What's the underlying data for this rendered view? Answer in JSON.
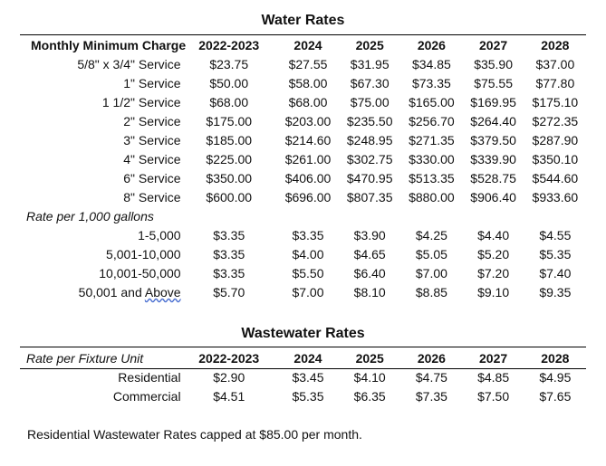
{
  "water": {
    "title": "Water Rates",
    "header": [
      "Monthly Minimum Charge",
      "2022-2023",
      "2024",
      "2025",
      "2026",
      "2027",
      "2028"
    ],
    "service_rows": [
      {
        "label": "5/8\" x 3/4\" Service",
        "values": [
          "$23.75",
          "$27.55",
          "$31.95",
          "$34.85",
          "$35.90",
          "$37.00"
        ]
      },
      {
        "label": "1\" Service",
        "values": [
          "$50.00",
          "$58.00",
          "$67.30",
          "$73.35",
          "$75.55",
          "$77.80"
        ]
      },
      {
        "label": "1 1/2\" Service",
        "values": [
          "$68.00",
          "$68.00",
          "$75.00",
          "$165.00",
          "$169.95",
          "$175.10"
        ]
      },
      {
        "label": "2\" Service",
        "values": [
          "$175.00",
          "$203.00",
          "$235.50",
          "$256.70",
          "$264.40",
          "$272.35"
        ]
      },
      {
        "label": "3\" Service",
        "values": [
          "$185.00",
          "$214.60",
          "$248.95",
          "$271.35",
          "$379.50",
          "$287.90"
        ]
      },
      {
        "label": "4\" Service",
        "values": [
          "$225.00",
          "$261.00",
          "$302.75",
          "$330.00",
          "$339.90",
          "$350.10"
        ]
      },
      {
        "label": "6\" Service",
        "values": [
          "$350.00",
          "$406.00",
          "$470.95",
          "$513.35",
          "$528.75",
          "$544.60"
        ]
      },
      {
        "label": "8\" Service",
        "values": [
          "$600.00",
          "$696.00",
          "$807.35",
          "$880.00",
          "$906.40",
          "$933.60"
        ]
      }
    ],
    "subheader": "Rate per 1,000 gallons",
    "usage_rows": [
      {
        "label": "1-5,000",
        "values": [
          "$3.35",
          "$3.35",
          "$3.90",
          "$4.25",
          "$4.40",
          "$4.55"
        ]
      },
      {
        "label": "5,001-10,000",
        "values": [
          "$3.35",
          "$4.00",
          "$4.65",
          "$5.05",
          "$5.20",
          "$5.35"
        ]
      },
      {
        "label": "10,001-50,000",
        "values": [
          "$3.35",
          "$5.50",
          "$6.40",
          "$7.00",
          "$7.20",
          "$7.40"
        ]
      },
      {
        "label_main": "50,001 and ",
        "label_ul": "Above",
        "values": [
          "$5.70",
          "$7.00",
          "$8.10",
          "$8.85",
          "$9.10",
          "$9.35"
        ]
      }
    ]
  },
  "wastewater": {
    "title": "Wastewater Rates",
    "header": [
      "Rate per Fixture Unit",
      "2022-2023",
      "2024",
      "2025",
      "2026",
      "2027",
      "2028"
    ],
    "rows": [
      {
        "label": "Residential",
        "values": [
          "$2.90",
          "$3.45",
          "$4.10",
          "$4.75",
          "$4.85",
          "$4.95"
        ]
      },
      {
        "label": "Commercial",
        "values": [
          "$4.51",
          "$5.35",
          "$6.35",
          "$7.35",
          "$7.50",
          "$7.65"
        ]
      }
    ]
  },
  "note": "Residential Wastewater Rates capped at $85.00 per month."
}
